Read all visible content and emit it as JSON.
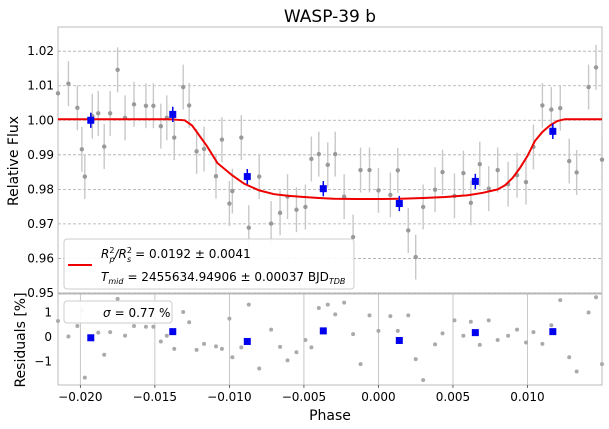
{
  "chart_data": [
    {
      "type": "scatter",
      "title": "WASP-39 b",
      "xlabel": "",
      "ylabel": "Relative Flux",
      "xlim": [
        -0.0215,
        0.015
      ],
      "ylim": [
        0.95,
        1.027
      ],
      "yticks": [
        "1.02",
        "1.01",
        "1.00",
        "0.99",
        "0.98",
        "0.97",
        "0.96",
        "0.95"
      ],
      "grid": "horizontal dashed",
      "legend_position": "lower-left",
      "legend": {
        "line1_prefix": "R",
        "line1_sub1": "p",
        "line1_sup1": "2",
        "line1_mid": "/R",
        "line1_sub2": "s",
        "line1_sup2": "2",
        "line1_value": "= 0.0192 ± 0.0041",
        "line2_prefix": "T",
        "line2_sub": "mid",
        "line2_value": "= 2455634.94906 ± 0.00037 BJD",
        "line2_sub2": "TDB"
      },
      "series": [
        {
          "name": "unbinned",
          "color": "#999999",
          "err": 0.0065,
          "points": [
            [
              -0.0215,
              1.0078
            ],
            [
              -0.0208,
              1.0106
            ],
            [
              -0.0202,
              1.0036
            ],
            [
              -0.0199,
              0.9916
            ],
            [
              -0.0197,
              0.9837
            ],
            [
              -0.0192,
              1.0012
            ],
            [
              -0.0188,
              1.002
            ],
            [
              -0.0184,
              0.9924
            ],
            [
              -0.018,
              1.002
            ],
            [
              -0.0175,
              1.0146
            ],
            [
              -0.017,
              1.0007
            ],
            [
              -0.0164,
              1.0046
            ],
            [
              -0.0156,
              1.0042
            ],
            [
              -0.0151,
              1.0042
            ],
            [
              -0.0146,
              0.9983
            ],
            [
              -0.0142,
              1.0007
            ],
            [
              -0.0137,
              0.995
            ],
            [
              -0.0131,
              1.0096
            ],
            [
              -0.0127,
              1.0043
            ],
            [
              -0.0122,
              0.991
            ],
            [
              -0.0117,
              0.9917
            ],
            [
              -0.0109,
              0.9838
            ],
            [
              -0.0105,
              0.9944
            ],
            [
              -0.01,
              0.9759
            ],
            [
              -0.0098,
              0.9795
            ],
            [
              -0.0092,
              0.995
            ],
            [
              -0.0087,
              0.9689
            ],
            [
              -0.008,
              0.9837
            ],
            [
              -0.0072,
              0.9701
            ],
            [
              -0.0066,
              0.9732
            ],
            [
              -0.0061,
              0.9779
            ],
            [
              -0.0055,
              0.9741
            ],
            [
              -0.0049,
              0.9749
            ],
            [
              -0.0045,
              0.9888
            ],
            [
              -0.004,
              0.9902
            ],
            [
              -0.0034,
              0.9871
            ],
            [
              -0.0029,
              0.9902
            ],
            [
              -0.0023,
              0.9779
            ],
            [
              -0.0017,
              0.9662
            ],
            [
              -0.0012,
              0.9856
            ],
            [
              -0.0006,
              0.9856
            ],
            [
              0.0,
              0.9797
            ],
            [
              0.0008,
              0.9784
            ],
            [
              0.0013,
              0.9855
            ],
            [
              0.002,
              0.9681
            ],
            [
              0.0025,
              0.9604
            ],
            [
              0.003,
              0.9749
            ],
            [
              0.0038,
              0.9799
            ],
            [
              0.0043,
              0.985
            ],
            [
              0.0051,
              0.9781
            ],
            [
              0.0057,
              0.9847
            ],
            [
              0.0062,
              0.9761
            ],
            [
              0.0068,
              0.9873
            ],
            [
              0.0074,
              0.9802
            ],
            [
              0.008,
              0.9856
            ],
            [
              0.0087,
              0.9815
            ],
            [
              0.0093,
              0.9841
            ],
            [
              0.0099,
              0.9821
            ],
            [
              0.0104,
              0.9923
            ],
            [
              0.011,
              1.0043
            ],
            [
              0.0116,
              1.0031
            ],
            [
              0.0122,
              1.0035
            ],
            [
              0.0128,
              0.9882
            ],
            [
              0.0133,
              0.9849
            ],
            [
              0.0141,
              1.0096
            ],
            [
              0.0146,
              1.0153
            ],
            [
              0.015,
              0.9886
            ]
          ]
        },
        {
          "name": "binned",
          "color": "#0000ee",
          "err": 0.0022,
          "points": [
            [
              -0.0193,
              1.0
            ],
            [
              -0.0138,
              1.0017
            ],
            [
              -0.0088,
              0.9837
            ],
            [
              -0.0037,
              0.9802
            ],
            [
              0.0014,
              0.9759
            ],
            [
              0.0065,
              0.9823
            ],
            [
              0.0117,
              0.9968
            ]
          ]
        },
        {
          "name": "model",
          "color": "#ee0000",
          "type": "line",
          "points": [
            [
              -0.0215,
              1.0003
            ],
            [
              -0.016,
              1.0003
            ],
            [
              -0.014,
              1.0003
            ],
            [
              -0.013,
              1.0
            ],
            [
              -0.0125,
              0.9985
            ],
            [
              -0.0115,
              0.9925
            ],
            [
              -0.0108,
              0.9876
            ],
            [
              -0.0098,
              0.984
            ],
            [
              -0.009,
              0.9816
            ],
            [
              -0.008,
              0.9797
            ],
            [
              -0.007,
              0.9786
            ],
            [
              -0.006,
              0.9781
            ],
            [
              -0.005,
              0.9778
            ],
            [
              -0.004,
              0.9775
            ],
            [
              -0.003,
              0.9773
            ],
            [
              -0.0015,
              0.9772
            ],
            [
              0.0,
              0.9772
            ],
            [
              0.0015,
              0.9773
            ],
            [
              0.003,
              0.9775
            ],
            [
              0.0045,
              0.9778
            ],
            [
              0.006,
              0.9783
            ],
            [
              0.007,
              0.979
            ],
            [
              0.008,
              0.98
            ],
            [
              0.0085,
              0.9812
            ],
            [
              0.009,
              0.9833
            ],
            [
              0.0095,
              0.9862
            ],
            [
              0.01,
              0.9897
            ],
            [
              0.0105,
              0.994
            ],
            [
              0.011,
              0.9966
            ],
            [
              0.0115,
              0.9985
            ],
            [
              0.012,
              0.9998
            ],
            [
              0.0125,
              1.0003
            ],
            [
              0.015,
              1.0003
            ]
          ]
        }
      ]
    },
    {
      "type": "scatter",
      "title": "",
      "xlabel": "Phase",
      "ylabel": "Residuals [%]",
      "xlim": [
        -0.0215,
        0.015
      ],
      "ylim": [
        -1.95,
        1.75
      ],
      "yticks": [
        "1",
        "0",
        "−1"
      ],
      "xticks": [
        "−0.020",
        "−0.015",
        "−0.010",
        "−0.005",
        "0.000",
        "0.005",
        "0.010"
      ],
      "grid": "vertical solid",
      "legend_position": "top-left",
      "legend": {
        "sigma_label": "σ",
        "sigma_value": "= 0.77 %"
      },
      "series": [
        {
          "name": "unbinned",
          "color": "#999999",
          "points": [
            [
              -0.0215,
              0.65
            ],
            [
              -0.0208,
              0.02
            ],
            [
              -0.0202,
              0.45
            ],
            [
              -0.0199,
              1.08
            ],
            [
              -0.0197,
              -1.65
            ],
            [
              -0.0192,
              -0.08
            ],
            [
              -0.0188,
              0.18
            ],
            [
              -0.0184,
              -0.72
            ],
            [
              -0.018,
              0.2
            ],
            [
              -0.0175,
              1.55
            ],
            [
              -0.017,
              0.06
            ],
            [
              -0.0164,
              0.45
            ],
            [
              -0.0156,
              0.42
            ],
            [
              -0.0151,
              0.42
            ],
            [
              -0.0146,
              -0.18
            ],
            [
              -0.0142,
              0.05
            ],
            [
              -0.0137,
              -0.48
            ],
            [
              -0.0131,
              1.02
            ],
            [
              -0.0127,
              0.6
            ],
            [
              -0.0122,
              -0.52
            ],
            [
              -0.0117,
              -0.28
            ],
            [
              -0.0109,
              -0.38
            ],
            [
              -0.0105,
              -0.48
            ],
            [
              -0.01,
              0.75
            ],
            [
              -0.0098,
              -0.82
            ],
            [
              -0.0092,
              -0.42
            ],
            [
              -0.0087,
              1.32
            ],
            [
              -0.008,
              -1.28
            ],
            [
              -0.0072,
              0.3
            ],
            [
              -0.0066,
              -0.4
            ],
            [
              -0.0061,
              -0.95
            ],
            [
              -0.0055,
              -0.62
            ],
            [
              -0.0049,
              -0.12
            ],
            [
              -0.0045,
              -0.42
            ],
            [
              -0.004,
              1.18
            ],
            [
              -0.0034,
              1.32
            ],
            [
              -0.0029,
              0.92
            ],
            [
              -0.0023,
              1.4
            ],
            [
              -0.0017,
              0.12
            ],
            [
              -0.0012,
              -1.1
            ],
            [
              -0.0006,
              0.88
            ],
            [
              0.0,
              0.25
            ],
            [
              0.0008,
              0.85
            ],
            [
              0.0013,
              0.25
            ],
            [
              0.002,
              0.88
            ],
            [
              0.0025,
              -0.9
            ],
            [
              0.003,
              -1.75
            ],
            [
              0.0038,
              -0.3
            ],
            [
              0.0043,
              0.15
            ],
            [
              0.0051,
              0.68
            ],
            [
              0.0057,
              0.05
            ],
            [
              0.0062,
              0.62
            ],
            [
              0.0068,
              -0.32
            ],
            [
              0.0074,
              0.68
            ],
            [
              0.008,
              -0.12
            ],
            [
              0.0087,
              0.05
            ],
            [
              0.0093,
              0.3
            ],
            [
              0.0099,
              -0.22
            ],
            [
              0.0104,
              0.2
            ],
            [
              0.011,
              -0.28
            ],
            [
              0.0116,
              0.48
            ],
            [
              0.0122,
              1.5
            ],
            [
              0.0128,
              -0.82
            ],
            [
              0.0133,
              -1.4
            ],
            [
              0.0141,
              1.0
            ],
            [
              0.0146,
              1.62
            ],
            [
              0.015,
              -1.1
            ]
          ]
        },
        {
          "name": "binned",
          "color": "#0000ee",
          "points": [
            [
              -0.0193,
              -0.03
            ],
            [
              -0.0138,
              0.22
            ],
            [
              -0.0088,
              -0.18
            ],
            [
              -0.0037,
              0.25
            ],
            [
              0.0014,
              -0.14
            ],
            [
              0.0065,
              0.18
            ],
            [
              0.0117,
              0.22
            ]
          ]
        }
      ]
    }
  ]
}
